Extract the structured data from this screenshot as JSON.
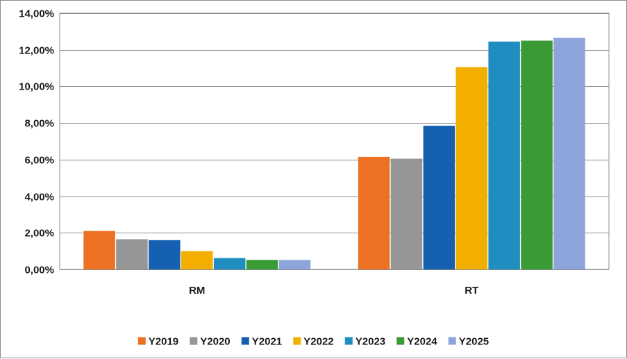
{
  "chart_data": {
    "type": "bar",
    "categories": [
      "RM",
      "RT"
    ],
    "series": [
      {
        "name": "Y2019",
        "color": "#ED7123",
        "values": [
          2.1,
          6.15
        ]
      },
      {
        "name": "Y2020",
        "color": "#969696",
        "values": [
          1.65,
          6.05
        ]
      },
      {
        "name": "Y2021",
        "color": "#1560B0",
        "values": [
          1.6,
          7.85
        ]
      },
      {
        "name": "Y2022",
        "color": "#F3AF00",
        "values": [
          1.0,
          11.05
        ]
      },
      {
        "name": "Y2023",
        "color": "#1F8DC0",
        "values": [
          0.62,
          12.45
        ]
      },
      {
        "name": "Y2024",
        "color": "#3A9A35",
        "values": [
          0.52,
          12.5
        ]
      },
      {
        "name": "Y2025",
        "color": "#8DA5DA",
        "values": [
          0.52,
          12.65
        ]
      }
    ],
    "ylim": [
      0,
      14
    ],
    "yticks": [
      0,
      2,
      4,
      6,
      8,
      10,
      12,
      14
    ],
    "ytick_labels": [
      "0,00%",
      "2,00%",
      "4,00%",
      "6,00%",
      "8,00%",
      "10,00%",
      "12,00%",
      "14,00%"
    ],
    "grid": true,
    "legend_position": "bottom"
  }
}
